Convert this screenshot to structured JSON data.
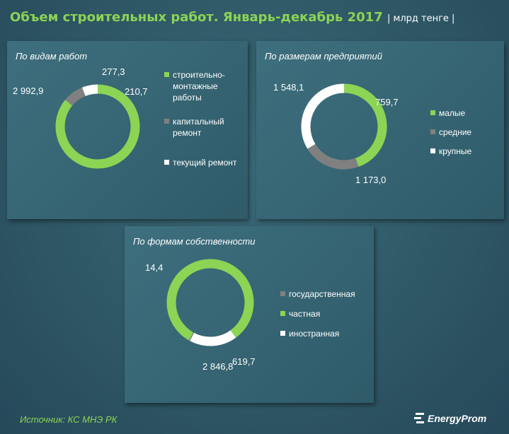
{
  "header": {
    "title": "Объем строительных работ. Январь-декабрь 2017",
    "unit": "| млрд тенге |"
  },
  "colors": {
    "green": "#8cd454",
    "grey": "#808080",
    "white": "#ffffff",
    "title": "#8cd454"
  },
  "chart_data": [
    {
      "type": "pie",
      "title": "По видам работ",
      "categories": [
        "строительно-монтажные работы",
        "капитальный ремонт",
        "текущий ремонт"
      ],
      "legend_lines": [
        [
          "строительно-",
          "монтажные",
          "работы"
        ],
        [
          "капитальный",
          "ремонт"
        ],
        [
          "текущий ремонт"
        ]
      ],
      "values": [
        2992.9,
        277.3,
        210.7
      ],
      "value_labels": [
        "2 992,9",
        "277,3",
        "210,7"
      ],
      "colors": [
        "#8cd454",
        "#808080",
        "#ffffff"
      ],
      "donut": true,
      "legend": "right"
    },
    {
      "type": "pie",
      "title": "По размерам предприятий",
      "categories": [
        "малые",
        "средние",
        "крупные"
      ],
      "legend_lines": [
        [
          "малые"
        ],
        [
          "средние"
        ],
        [
          "крупные"
        ]
      ],
      "values": [
        1548.1,
        759.7,
        1173.0
      ],
      "value_labels": [
        "1 548,1",
        "759,7",
        "1 173,0"
      ],
      "colors": [
        "#8cd454",
        "#808080",
        "#ffffff"
      ],
      "donut": true,
      "legend": "right"
    },
    {
      "type": "pie",
      "title": "По формам собственности",
      "categories": [
        "государственная",
        "частная",
        "иностранная"
      ],
      "legend_lines": [
        [
          "государственная"
        ],
        [
          "частная"
        ],
        [
          "иностранная"
        ]
      ],
      "values": [
        14.4,
        2846.8,
        619.7
      ],
      "value_labels": [
        "14,4",
        "2 846,8",
        "619,7"
      ],
      "colors": [
        "#808080",
        "#8cd454",
        "#ffffff"
      ],
      "donut": true,
      "legend": "right"
    }
  ],
  "footer": {
    "source": "Источник: КС МНЭ РК",
    "logo_text": "EnergyProm"
  }
}
